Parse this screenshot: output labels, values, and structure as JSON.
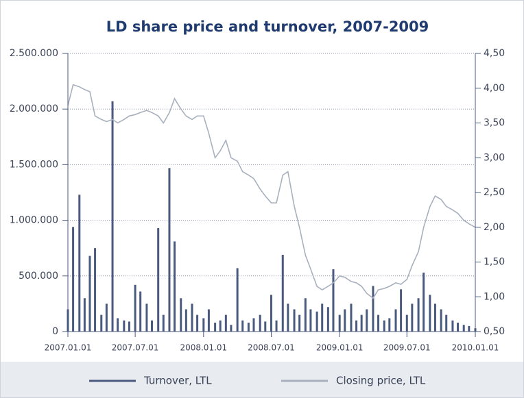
{
  "chart_data": {
    "type": "bar_line",
    "title": "LD share price and turnover, 2007-2009",
    "x": [
      "2007.01.01",
      "2007.01.15",
      "2007.02.01",
      "2007.02.15",
      "2007.03.01",
      "2007.03.15",
      "2007.04.01",
      "2007.04.15",
      "2007.05.01",
      "2007.05.15",
      "2007.06.01",
      "2007.06.15",
      "2007.07.01",
      "2007.07.15",
      "2007.08.01",
      "2007.08.15",
      "2007.09.01",
      "2007.09.15",
      "2007.10.01",
      "2007.10.15",
      "2007.11.01",
      "2007.11.15",
      "2007.12.01",
      "2007.12.15",
      "2008.01.01",
      "2008.01.15",
      "2008.02.01",
      "2008.02.15",
      "2008.03.01",
      "2008.03.15",
      "2008.04.01",
      "2008.04.15",
      "2008.05.01",
      "2008.05.15",
      "2008.06.01",
      "2008.06.15",
      "2008.07.01",
      "2008.07.15",
      "2008.08.01",
      "2008.08.15",
      "2008.09.01",
      "2008.09.15",
      "2008.10.01",
      "2008.10.15",
      "2008.11.01",
      "2008.11.15",
      "2008.12.01",
      "2008.12.15",
      "2009.01.01",
      "2009.01.15",
      "2009.02.01",
      "2009.02.15",
      "2009.03.01",
      "2009.03.15",
      "2009.04.01",
      "2009.04.15",
      "2009.05.01",
      "2009.05.15",
      "2009.06.01",
      "2009.06.15",
      "2009.07.01",
      "2009.07.15",
      "2009.08.01",
      "2009.08.15",
      "2009.09.01",
      "2009.09.15",
      "2009.10.01",
      "2009.10.15",
      "2009.11.01",
      "2009.11.15",
      "2009.12.01",
      "2009.12.15",
      "2010.01.01"
    ],
    "series": [
      {
        "name": "Turnover, LTL",
        "color": "#4a5a7e",
        "kind": "bar",
        "values": [
          200000,
          940000,
          1230000,
          300000,
          680000,
          750000,
          150000,
          250000,
          2070000,
          120000,
          100000,
          90000,
          420000,
          360000,
          250000,
          100000,
          930000,
          150000,
          1470000,
          810000,
          300000,
          200000,
          250000,
          150000,
          120000,
          200000,
          80000,
          100000,
          150000,
          60000,
          570000,
          100000,
          80000,
          120000,
          150000,
          90000,
          330000,
          100000,
          690000,
          250000,
          200000,
          150000,
          300000,
          200000,
          180000,
          250000,
          220000,
          560000,
          150000,
          200000,
          250000,
          100000,
          150000,
          200000,
          410000,
          150000,
          100000,
          120000,
          200000,
          380000,
          150000,
          250000,
          300000,
          530000,
          330000,
          250000,
          200000,
          150000,
          100000,
          80000,
          60000,
          50000,
          30000
        ]
      },
      {
        "name": "Closing price, LTL",
        "color": "#a8b0be",
        "kind": "line",
        "axis": "y2",
        "values": [
          3.75,
          4.05,
          4.02,
          3.98,
          3.95,
          3.6,
          3.55,
          3.52,
          3.55,
          3.5,
          3.55,
          3.6,
          3.62,
          3.65,
          3.68,
          3.65,
          3.6,
          3.5,
          3.65,
          3.85,
          3.7,
          3.6,
          3.55,
          3.6,
          3.6,
          3.35,
          3.0,
          3.1,
          3.25,
          3.0,
          2.95,
          2.8,
          2.75,
          2.7,
          2.55,
          2.45,
          2.35,
          2.35,
          2.75,
          2.8,
          2.3,
          2.0,
          1.6,
          1.4,
          1.15,
          1.1,
          1.15,
          1.2,
          1.3,
          1.28,
          1.22,
          1.2,
          1.15,
          1.05,
          0.98,
          1.1,
          1.12,
          1.15,
          1.2,
          1.18,
          1.25,
          1.45,
          1.65,
          2.0,
          2.3,
          2.45,
          2.4,
          2.3,
          2.25,
          2.2,
          2.1,
          2.05,
          2.0
        ]
      }
    ],
    "xlim": [
      "2007.01.01",
      "2010.01.01"
    ],
    "xticks": [
      "2007.01.01",
      "2007.07.01",
      "2008.01.01",
      "2008.07.01",
      "2009.01.01",
      "2009.07.01",
      "2010.01.01"
    ],
    "ylim": [
      0,
      2500000
    ],
    "yticks": [
      0,
      {
        "value": 500000,
        "label": "500.000"
      },
      {
        "value": 1000000,
        "label": "1.000.000"
      },
      {
        "value": 1500000,
        "label": "1.500.000"
      },
      {
        "value": 2000000,
        "label": "2.000.000"
      },
      {
        "value": 2500000,
        "label": "2.500.000"
      }
    ],
    "y2lim": [
      0.5,
      4.5
    ],
    "y2ticks": [
      {
        "value": 0.5,
        "label": "0,50"
      },
      {
        "value": 1,
        "label": "1,00"
      },
      {
        "value": 1.5,
        "label": "1,50"
      },
      {
        "value": 2,
        "label": "2,00"
      },
      {
        "value": 2.5,
        "label": "2,50"
      },
      {
        "value": 3,
        "label": "3,00"
      },
      {
        "value": 3.5,
        "label": "3,50"
      },
      {
        "value": 4,
        "label": "4,00"
      },
      {
        "value": 4.5,
        "label": "4,50"
      }
    ],
    "grid": true,
    "legend": "bottom"
  }
}
